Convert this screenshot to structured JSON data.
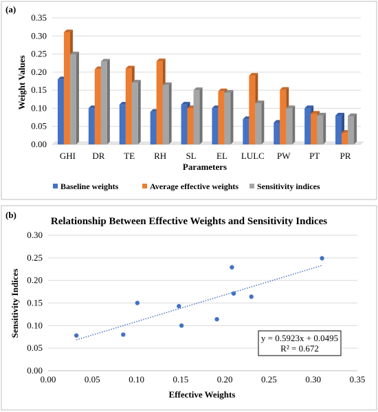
{
  "colors": {
    "baseline": "#4472C4",
    "effective": "#ED7D31",
    "sensitivity": "#A5A5A5",
    "scatter": "#4472C4",
    "grid": "#D9D9D9",
    "frame": "#BFBFBF"
  },
  "chart_data": [
    {
      "type": "bar",
      "panel": "(a)",
      "title": "",
      "xlabel": "Parameters",
      "ylabel": "Weight Values",
      "ylim": [
        0,
        0.35
      ],
      "yticks": [
        "0.00",
        "0.05",
        "0.10",
        "0.15",
        "0.20",
        "0.25",
        "0.30",
        "0.35"
      ],
      "grid": true,
      "legend_position": "bottom",
      "categories": [
        "GHI",
        "DR",
        "TE",
        "RH",
        "SL",
        "EL",
        "LULC",
        "PW",
        "PT",
        "PR"
      ],
      "series": [
        {
          "name": "Baseline weights",
          "values": [
            0.18,
            0.1,
            0.11,
            0.09,
            0.11,
            0.1,
            0.07,
            0.06,
            0.1,
            0.08
          ]
        },
        {
          "name": "Average effective weights",
          "values": [
            0.31,
            0.208,
            0.21,
            0.23,
            0.1,
            0.147,
            0.19,
            0.151,
            0.085,
            0.032
          ]
        },
        {
          "name": "Sensitivity indices",
          "values": [
            0.249,
            0.229,
            0.171,
            0.164,
            0.15,
            0.143,
            0.114,
            0.1,
            0.08,
            0.078
          ]
        }
      ]
    },
    {
      "type": "scatter",
      "panel": "(b)",
      "title": "Relationship Between Effective Weights and Sensitivity Indices",
      "xlabel": "Effective Weights",
      "ylabel": "Sensitivity Indices",
      "xlim": [
        0,
        0.35
      ],
      "ylim": [
        0,
        0.3
      ],
      "xticks": [
        "0.00",
        "0.05",
        "0.10",
        "0.15",
        "0.20",
        "0.25",
        "0.30",
        "0.35"
      ],
      "yticks": [
        "0.00",
        "0.05",
        "0.10",
        "0.15",
        "0.20",
        "0.25",
        "0.30"
      ],
      "grid": true,
      "points": [
        {
          "x": 0.31,
          "y": 0.249
        },
        {
          "x": 0.208,
          "y": 0.229
        },
        {
          "x": 0.21,
          "y": 0.171
        },
        {
          "x": 0.23,
          "y": 0.164
        },
        {
          "x": 0.101,
          "y": 0.15
        },
        {
          "x": 0.148,
          "y": 0.143
        },
        {
          "x": 0.191,
          "y": 0.114
        },
        {
          "x": 0.151,
          "y": 0.1
        },
        {
          "x": 0.085,
          "y": 0.08
        },
        {
          "x": 0.032,
          "y": 0.078
        }
      ],
      "trendline": {
        "slope": 0.5923,
        "intercept": 0.0495,
        "x_start": 0.032,
        "x_end": 0.31
      },
      "equation": "y = 0.5923x + 0.0495",
      "r_squared": "R² = 0.672"
    }
  ]
}
